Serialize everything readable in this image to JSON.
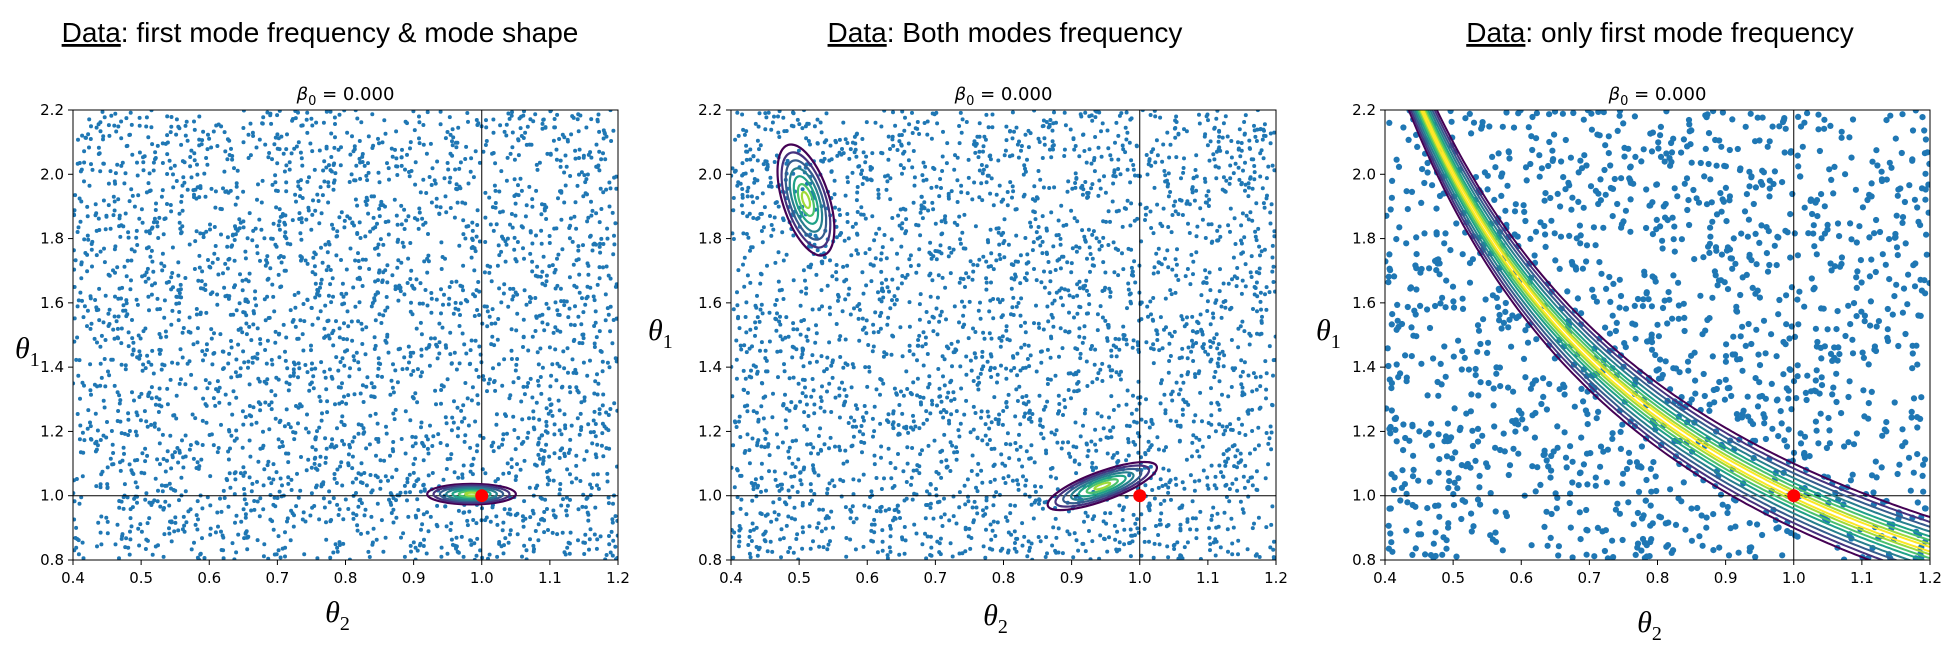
{
  "chart_data": [
    {
      "type": "scatter",
      "heading_prefix": "Data",
      "heading_rest": ": first mode frequency & mode shape",
      "subtitle_symbol": "β",
      "subtitle_sub": "0",
      "subtitle_rest": " = 0.000",
      "xlabel_symbol": "θ",
      "xlabel_sub": "2",
      "ylabel_symbol": "θ",
      "ylabel_sub": "1",
      "xlim": [
        0.4,
        1.2
      ],
      "ylim": [
        0.8,
        2.2
      ],
      "xticks": [
        "0.4",
        "0.5",
        "0.6",
        "0.7",
        "0.8",
        "0.9",
        "1.0",
        "1.1",
        "1.2"
      ],
      "yticks": [
        "0.8",
        "1.0",
        "1.2",
        "1.4",
        "1.6",
        "1.8",
        "2.0",
        "2.2"
      ],
      "reference_lines": {
        "x": 1.0,
        "y": 1.0
      },
      "true_point": {
        "x": 1.0,
        "y": 1.0,
        "color": "#ff0000"
      },
      "samples": {
        "count": 3000,
        "color": "#1f77b4",
        "distribution": "uniform",
        "seed": 11
      },
      "density_contours": [
        {
          "shape": "ellipse",
          "cx": 0.985,
          "cy": 1.005,
          "rx": 0.065,
          "ry": 0.032,
          "angle_deg": 0,
          "levels": 7
        }
      ]
    },
    {
      "type": "scatter",
      "heading_prefix": "Data",
      "heading_rest": ": Both modes frequency",
      "subtitle_symbol": "β",
      "subtitle_sub": "0",
      "subtitle_rest": " = 0.000",
      "xlabel_symbol": "θ",
      "xlabel_sub": "2",
      "ylabel_symbol": "θ",
      "ylabel_sub": "1",
      "xlim": [
        0.4,
        1.2
      ],
      "ylim": [
        0.8,
        2.2
      ],
      "xticks": [
        "0.4",
        "0.5",
        "0.6",
        "0.7",
        "0.8",
        "0.9",
        "1.0",
        "1.1",
        "1.2"
      ],
      "yticks": [
        "0.8",
        "1.0",
        "1.2",
        "1.4",
        "1.6",
        "1.8",
        "2.0",
        "2.2"
      ],
      "reference_lines": {
        "x": 1.0,
        "y": 1.0
      },
      "true_point": {
        "x": 1.0,
        "y": 1.0,
        "color": "#ff0000"
      },
      "samples": {
        "count": 3000,
        "color": "#1f77b4",
        "distribution": "uniform",
        "seed": 23
      },
      "density_contours": [
        {
          "shape": "ellipse",
          "cx": 0.51,
          "cy": 1.92,
          "rx": 0.034,
          "ry": 0.18,
          "angle_deg": -18,
          "levels": 7
        },
        {
          "shape": "ellipse",
          "cx": 0.945,
          "cy": 1.03,
          "rx": 0.085,
          "ry": 0.045,
          "angle_deg": -20,
          "levels": 7
        }
      ]
    },
    {
      "type": "scatter",
      "heading_prefix": "Data",
      "heading_rest": ": only first mode frequency",
      "subtitle_symbol": "β",
      "subtitle_sub": "0",
      "subtitle_rest": " = 0.000",
      "xlabel_symbol": "θ",
      "xlabel_sub": "2",
      "ylabel_symbol": "θ",
      "ylabel_sub": "1",
      "xlim": [
        0.4,
        1.2
      ],
      "ylim": [
        0.8,
        2.2
      ],
      "xticks": [
        "0.4",
        "0.5",
        "0.6",
        "0.7",
        "0.8",
        "0.9",
        "1.0",
        "1.1",
        "1.2"
      ],
      "yticks": [
        "0.8",
        "1.0",
        "1.2",
        "1.4",
        "1.6",
        "1.8",
        "2.0",
        "2.2"
      ],
      "reference_lines": {
        "x": 1.0,
        "y": 1.0
      },
      "true_point": {
        "x": 1.0,
        "y": 1.0,
        "color": "#ff0000"
      },
      "samples": {
        "count": 1500,
        "color": "#1f77b4",
        "distribution": "uniform",
        "seed": 37
      },
      "density_contours": [
        {
          "shape": "curve",
          "relation": "theta1 = 1 / theta2",
          "band_halfwidths": [
            0.1,
            0.085,
            0.07,
            0.055,
            0.04,
            0.028,
            0.016,
            0.007
          ]
        }
      ]
    }
  ],
  "contour_colors": [
    "#440154",
    "#46327e",
    "#365c8d",
    "#277f8e",
    "#1fa187",
    "#4ac16d",
    "#a0da39",
    "#fde725"
  ]
}
